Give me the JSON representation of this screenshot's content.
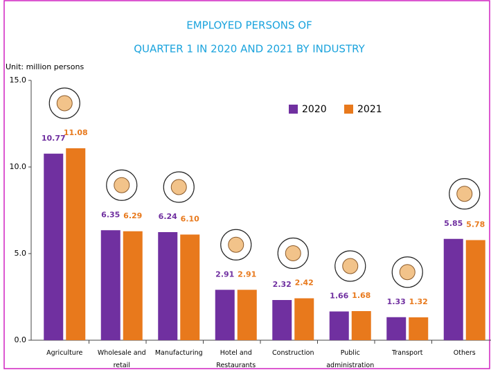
{
  "chart_data": {
    "type": "bar",
    "title": [
      "EMPLOYED PERSONS OF",
      "QUARTER 1 IN 2020 AND 2021  BY INDUSTRY"
    ],
    "y_label": "Unit: million persons",
    "categories": [
      "Agriculture",
      "Wholesale and retail",
      "Manufacturing",
      "Hotel and Restaurants",
      "Construction",
      "Public administration",
      "Transport",
      "Others"
    ],
    "series": [
      {
        "name": "2020",
        "color": "#7030a0",
        "values": [
          10.77,
          6.35,
          6.24,
          2.91,
          2.32,
          1.66,
          1.33,
          5.85
        ],
        "value_labels": [
          "10.77",
          "6.35",
          "6.24",
          "2.91",
          "2.32",
          "1.66",
          "1.33",
          "5.85"
        ]
      },
      {
        "name": "2021",
        "color": "#e8791c",
        "values": [
          11.08,
          6.29,
          6.1,
          2.91,
          2.42,
          1.68,
          1.32,
          5.78
        ],
        "value_labels": [
          "11.08",
          "6.29",
          "6.10",
          "2.91",
          "2.42",
          "1.68",
          "1.32",
          "5.78"
        ]
      }
    ],
    "ylim": [
      0,
      15
    ],
    "yticks": [
      {
        "value": 0,
        "label": "0.0"
      },
      {
        "value": 5,
        "label": "5.0"
      },
      {
        "value": 10,
        "label": "10.0"
      },
      {
        "value": 15,
        "label": "15.0"
      }
    ],
    "grid": false,
    "legend": "upper right"
  }
}
